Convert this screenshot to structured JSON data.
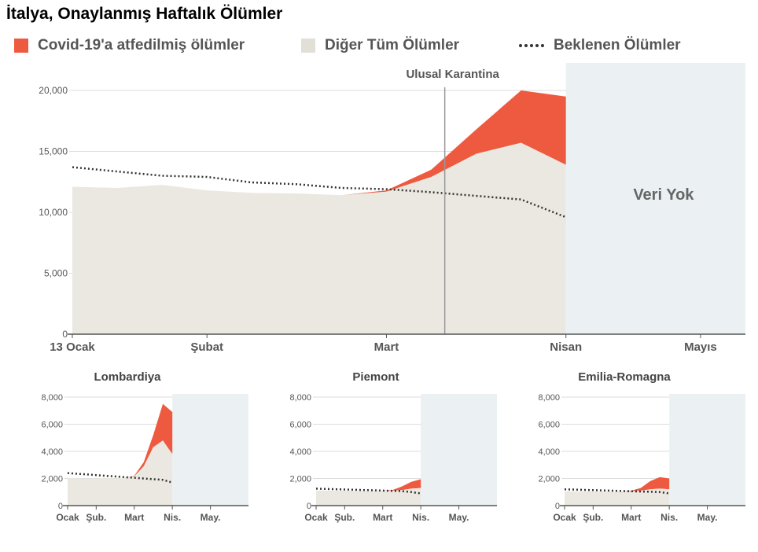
{
  "title": "İtalya, Onaylanmış Haftalık Ölümler",
  "legend": {
    "covid": "Covid-19'a atfedilmiş ölümler",
    "other": "Diğer Tüm Ölümler",
    "expected": "Beklenen Ölümler"
  },
  "colors": {
    "covid": "#ee5a40",
    "other": "#ebe8e1",
    "expected": "#333333",
    "no_data": "#ebf1f2",
    "axis": "#555555",
    "grid": "#dddddd"
  },
  "chart_data": [
    {
      "name": "main",
      "type": "area",
      "title": "",
      "ylim": [
        0,
        20000
      ],
      "yticks": [
        0,
        5000,
        10000,
        15000,
        20000
      ],
      "ytick_labels": [
        "0",
        "5,000",
        "10,000",
        "15,000",
        "20,000"
      ],
      "xlim": [
        0,
        15
      ],
      "xticks": [
        {
          "x": 0,
          "label": "13 Ocak"
        },
        {
          "x": 3,
          "label": "Şubat"
        },
        {
          "x": 7,
          "label": "Mart"
        },
        {
          "x": 11,
          "label": "Nisan"
        },
        {
          "x": 14,
          "label": "Mayıs"
        }
      ],
      "x": [
        0,
        1,
        2,
        3,
        4,
        5,
        6,
        7,
        8,
        9,
        10,
        11
      ],
      "total": [
        12100,
        12000,
        12250,
        11800,
        11600,
        11550,
        11400,
        11800,
        13500,
        16800,
        20000,
        19500
      ],
      "other": [
        12100,
        12000,
        12250,
        11800,
        11600,
        11550,
        11400,
        11700,
        12900,
        14800,
        15700,
        13900
      ],
      "expected": [
        13700,
        13350,
        13000,
        12900,
        12450,
        12300,
        12000,
        11900,
        11650,
        11350,
        11050,
        9600
      ],
      "no_data_from": 11,
      "annotation_line": {
        "x": 8.3,
        "label": "Ulusal Karantina"
      },
      "no_data_label": "Veri Yok"
    },
    {
      "name": "Lombardiya",
      "type": "area",
      "title": "Lombardiya",
      "ylim": [
        0,
        8000
      ],
      "yticks": [
        0,
        2000,
        4000,
        6000,
        8000
      ],
      "ytick_labels": [
        "0",
        "2,000",
        "4,000",
        "6,000",
        "8,000"
      ],
      "xlim": [
        0,
        19
      ],
      "xticks": [
        {
          "x": 0,
          "label": "Ocak"
        },
        {
          "x": 3,
          "label": "Şub."
        },
        {
          "x": 7,
          "label": "Mart"
        },
        {
          "x": 11,
          "label": "Nis."
        },
        {
          "x": 15,
          "label": "May."
        }
      ],
      "x": [
        0,
        1,
        2,
        3,
        4,
        5,
        6,
        7,
        8,
        9,
        10,
        11
      ],
      "total": [
        2050,
        2000,
        1980,
        2000,
        2050,
        2000,
        2050,
        2200,
        3200,
        5200,
        7500,
        6900
      ],
      "other": [
        2050,
        2000,
        1980,
        2000,
        2050,
        2000,
        2050,
        2150,
        2900,
        4300,
        4800,
        3800
      ],
      "expected": [
        2400,
        2350,
        2300,
        2250,
        2200,
        2150,
        2100,
        2050,
        2000,
        1950,
        1900,
        1700
      ],
      "no_data_from": 11
    },
    {
      "name": "Piemont",
      "type": "area",
      "title": "Piemont",
      "ylim": [
        0,
        8000
      ],
      "yticks": [
        0,
        2000,
        4000,
        6000,
        8000
      ],
      "ytick_labels": [
        "0",
        "2,000",
        "4,000",
        "6,000",
        "8,000"
      ],
      "xlim": [
        0,
        19
      ],
      "xticks": [
        {
          "x": 0,
          "label": "Ocak"
        },
        {
          "x": 3,
          "label": "Şub."
        },
        {
          "x": 7,
          "label": "Mart"
        },
        {
          "x": 11,
          "label": "Nis."
        },
        {
          "x": 15,
          "label": "May."
        }
      ],
      "x": [
        0,
        1,
        2,
        3,
        4,
        5,
        6,
        7,
        8,
        9,
        10,
        11
      ],
      "total": [
        1100,
        1100,
        1100,
        1100,
        1100,
        1100,
        1100,
        1100,
        1150,
        1400,
        1750,
        1950
      ],
      "other": [
        1100,
        1100,
        1100,
        1100,
        1100,
        1100,
        1100,
        1100,
        1100,
        1150,
        1250,
        1300
      ],
      "expected": [
        1250,
        1230,
        1210,
        1190,
        1170,
        1150,
        1130,
        1110,
        1090,
        1070,
        1000,
        900
      ],
      "no_data_from": 11
    },
    {
      "name": "Emilia-Romagna",
      "type": "area",
      "title": "Emilia-Romagna",
      "ylim": [
        0,
        8000
      ],
      "yticks": [
        0,
        2000,
        4000,
        6000,
        8000
      ],
      "ytick_labels": [
        "0",
        "2,000",
        "4,000",
        "6,000",
        "8,000"
      ],
      "xlim": [
        0,
        19
      ],
      "xticks": [
        {
          "x": 0,
          "label": "Ocak"
        },
        {
          "x": 3,
          "label": "Şub."
        },
        {
          "x": 7,
          "label": "Mart"
        },
        {
          "x": 11,
          "label": "Nis."
        },
        {
          "x": 15,
          "label": "May."
        }
      ],
      "x": [
        0,
        1,
        2,
        3,
        4,
        5,
        6,
        7,
        8,
        9,
        10,
        11
      ],
      "total": [
        1050,
        1050,
        1050,
        1050,
        1050,
        1050,
        1050,
        1100,
        1300,
        1800,
        2100,
        2000
      ],
      "other": [
        1050,
        1050,
        1050,
        1050,
        1050,
        1050,
        1050,
        1050,
        1100,
        1200,
        1250,
        1200
      ],
      "expected": [
        1200,
        1180,
        1160,
        1140,
        1120,
        1100,
        1080,
        1060,
        1040,
        1020,
        1000,
        900
      ],
      "no_data_from": 11
    }
  ]
}
